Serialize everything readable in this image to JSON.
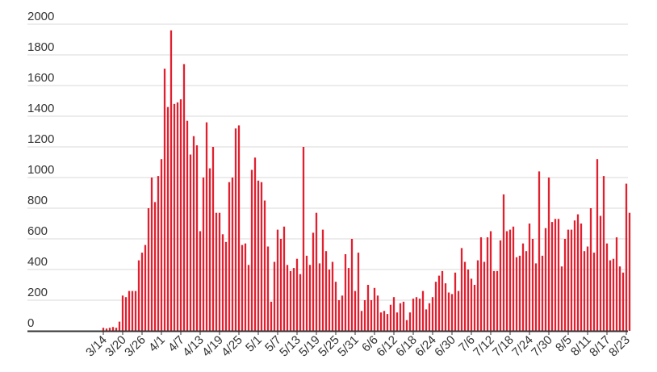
{
  "chart_data": {
    "type": "bar",
    "title": "",
    "xlabel": "",
    "ylabel": "",
    "ylim": [
      0,
      2000
    ],
    "y_ticks": [
      "0",
      "200",
      "400",
      "600",
      "800",
      "1000",
      "1200",
      "1400",
      "1600",
      "1800",
      "2000"
    ],
    "grid": true,
    "bar_color": "#e0202e",
    "x_tick_labels": [
      "3/14",
      "3/20",
      "3/26",
      "4/1",
      "4/7",
      "4/13",
      "4/19",
      "4/25",
      "5/1",
      "5/7",
      "5/13",
      "5/19",
      "5/25",
      "5/31",
      "6/6",
      "6/12",
      "6/18",
      "6/24",
      "6/30",
      "7/6",
      "7/12",
      "7/18",
      "7/24",
      "7/30",
      "8/5",
      "8/11",
      "8/17",
      "8/23"
    ],
    "start_date": "3/14",
    "values": [
      20,
      15,
      20,
      25,
      20,
      60,
      230,
      220,
      260,
      260,
      260,
      460,
      510,
      560,
      800,
      1000,
      840,
      1010,
      1120,
      1710,
      1460,
      1960,
      1480,
      1490,
      1510,
      1740,
      1370,
      1150,
      1270,
      1210,
      650,
      1000,
      1360,
      1060,
      1200,
      770,
      770,
      630,
      580,
      970,
      1000,
      1320,
      1340,
      560,
      570,
      430,
      1050,
      1130,
      980,
      970,
      850,
      550,
      190,
      450,
      660,
      600,
      680,
      430,
      390,
      410,
      470,
      370,
      1200,
      490,
      430,
      640,
      770,
      440,
      660,
      520,
      400,
      450,
      320,
      200,
      230,
      500,
      410,
      600,
      260,
      510,
      130,
      200,
      300,
      200,
      280,
      230,
      120,
      130,
      110,
      170,
      220,
      120,
      180,
      190,
      70,
      120,
      210,
      220,
      210,
      260,
      140,
      180,
      220,
      320,
      360,
      390,
      310,
      250,
      240,
      380,
      260,
      540,
      450,
      400,
      340,
      300,
      460,
      610,
      450,
      610,
      650,
      390,
      390,
      590,
      890,
      650,
      660,
      680,
      480,
      490,
      570,
      520,
      700,
      600,
      440,
      1040,
      490,
      670,
      1000,
      710,
      730,
      730,
      420,
      600,
      660,
      660,
      720,
      760,
      700,
      520,
      550,
      800,
      510,
      1120,
      750,
      1010,
      570,
      460,
      470,
      610,
      420,
      380,
      960,
      770
    ]
  }
}
